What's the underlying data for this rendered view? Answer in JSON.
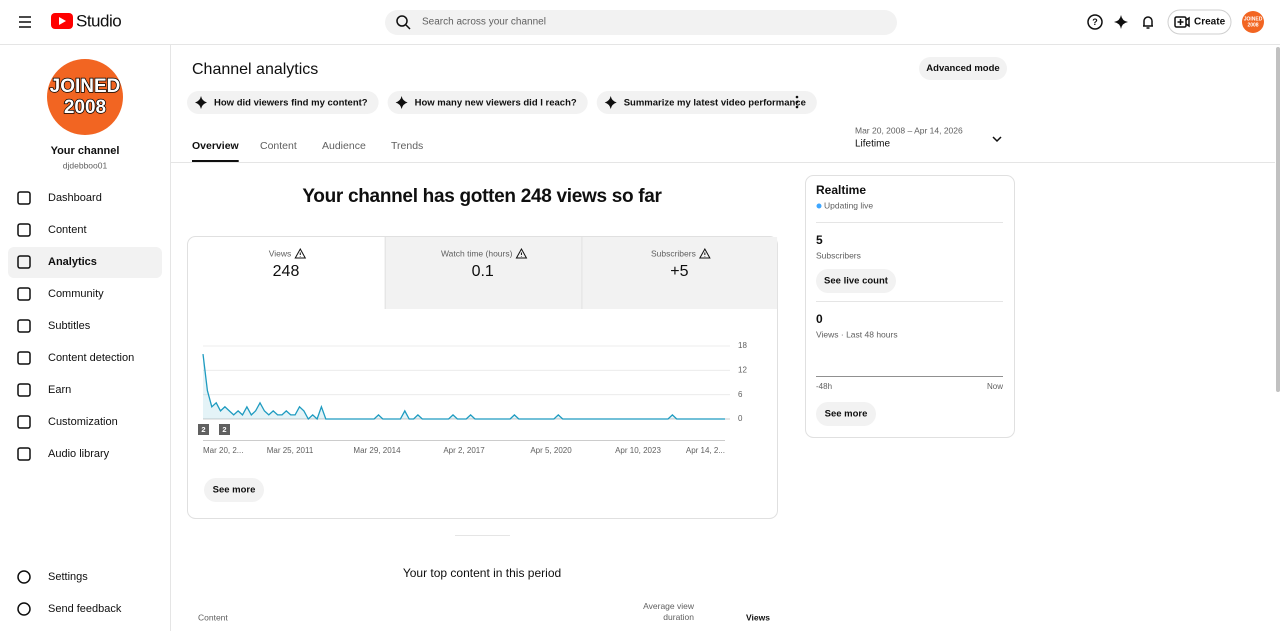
{
  "header": {
    "logo": "Studio",
    "search_placeholder": "Search across your channel",
    "create": "Create",
    "avatar": [
      "JOINED",
      "2008"
    ]
  },
  "sidebar": {
    "avatar": [
      "JOINED",
      "2008"
    ],
    "channel_title": "Your channel",
    "handle": "djdebboo01",
    "nav": [
      "Dashboard",
      "Content",
      "Analytics",
      "Community",
      "Subtitles",
      "Content detection",
      "Earn",
      "Customization",
      "Audio library"
    ],
    "active_nav": 2,
    "bottom": [
      "Settings",
      "Send feedback"
    ]
  },
  "page": {
    "title": "Channel analytics",
    "advanced_mode": "Advanced mode",
    "prompts": [
      "How did viewers find my content?",
      "How many new viewers did I reach?",
      "Summarize my latest video performance"
    ],
    "tabs": [
      "Overview",
      "Content",
      "Audience",
      "Trends"
    ],
    "active_tab": 0,
    "date_range": "Mar 20, 2008 – Apr 14, 2026",
    "period": "Lifetime",
    "headline": "Your channel has gotten 248 views so far",
    "metrics": [
      {
        "label": "Views",
        "value": "248"
      },
      {
        "label": "Watch time (hours)",
        "value": "0.1"
      },
      {
        "label": "Subscribers",
        "value": "+5"
      }
    ],
    "see_more": "See more",
    "top_content_title": "Your top content in this period",
    "table_headers": [
      "Content",
      "Average view duration",
      "Views"
    ]
  },
  "chart": {
    "type": "line",
    "color": "#1e9bc0",
    "x_labels": [
      "Mar 20, 2...",
      "Mar 25, 2011",
      "Mar 29, 2014",
      "Apr 2, 2017",
      "Apr 5, 2020",
      "Apr 10, 2023",
      "Apr 14, 2..."
    ],
    "values": [
      16,
      7,
      3,
      4,
      2,
      3,
      2,
      1,
      2,
      1,
      3,
      1,
      2,
      4,
      2,
      1,
      2,
      1,
      1,
      2,
      1,
      1,
      3,
      2,
      0,
      1,
      0,
      3,
      0,
      0,
      0,
      0,
      0,
      0,
      0,
      0,
      0,
      0,
      0,
      0,
      1,
      0,
      0,
      0,
      0,
      0,
      2,
      0,
      0,
      1,
      0,
      0,
      0,
      0,
      0,
      0,
      0,
      1,
      0,
      0,
      0,
      1,
      0,
      0,
      0,
      0,
      0,
      0,
      0,
      0,
      0,
      1,
      0,
      0,
      0,
      0,
      0,
      0,
      0,
      0,
      0,
      1,
      0,
      0,
      0,
      0,
      0,
      0,
      0,
      0,
      0,
      0,
      0,
      0,
      0,
      0,
      0,
      0,
      0,
      0,
      0,
      0,
      0,
      0,
      0,
      0,
      0,
      1,
      0,
      0,
      0,
      0,
      0,
      0,
      0,
      0,
      0,
      0,
      0,
      0
    ],
    "ylim": [
      0,
      18
    ],
    "yticks": [
      0,
      6,
      12,
      18
    ],
    "markers": [
      "2",
      "2"
    ]
  },
  "realtime": {
    "title": "Realtime",
    "status": "Updating live",
    "subscribers": "5",
    "subscribers_label": "Subscribers",
    "live_count": "See live count",
    "views": "0",
    "views_label": "Views · Last 48 hours",
    "axis_start": "-48h",
    "axis_end": "Now",
    "see_more": "See more"
  }
}
